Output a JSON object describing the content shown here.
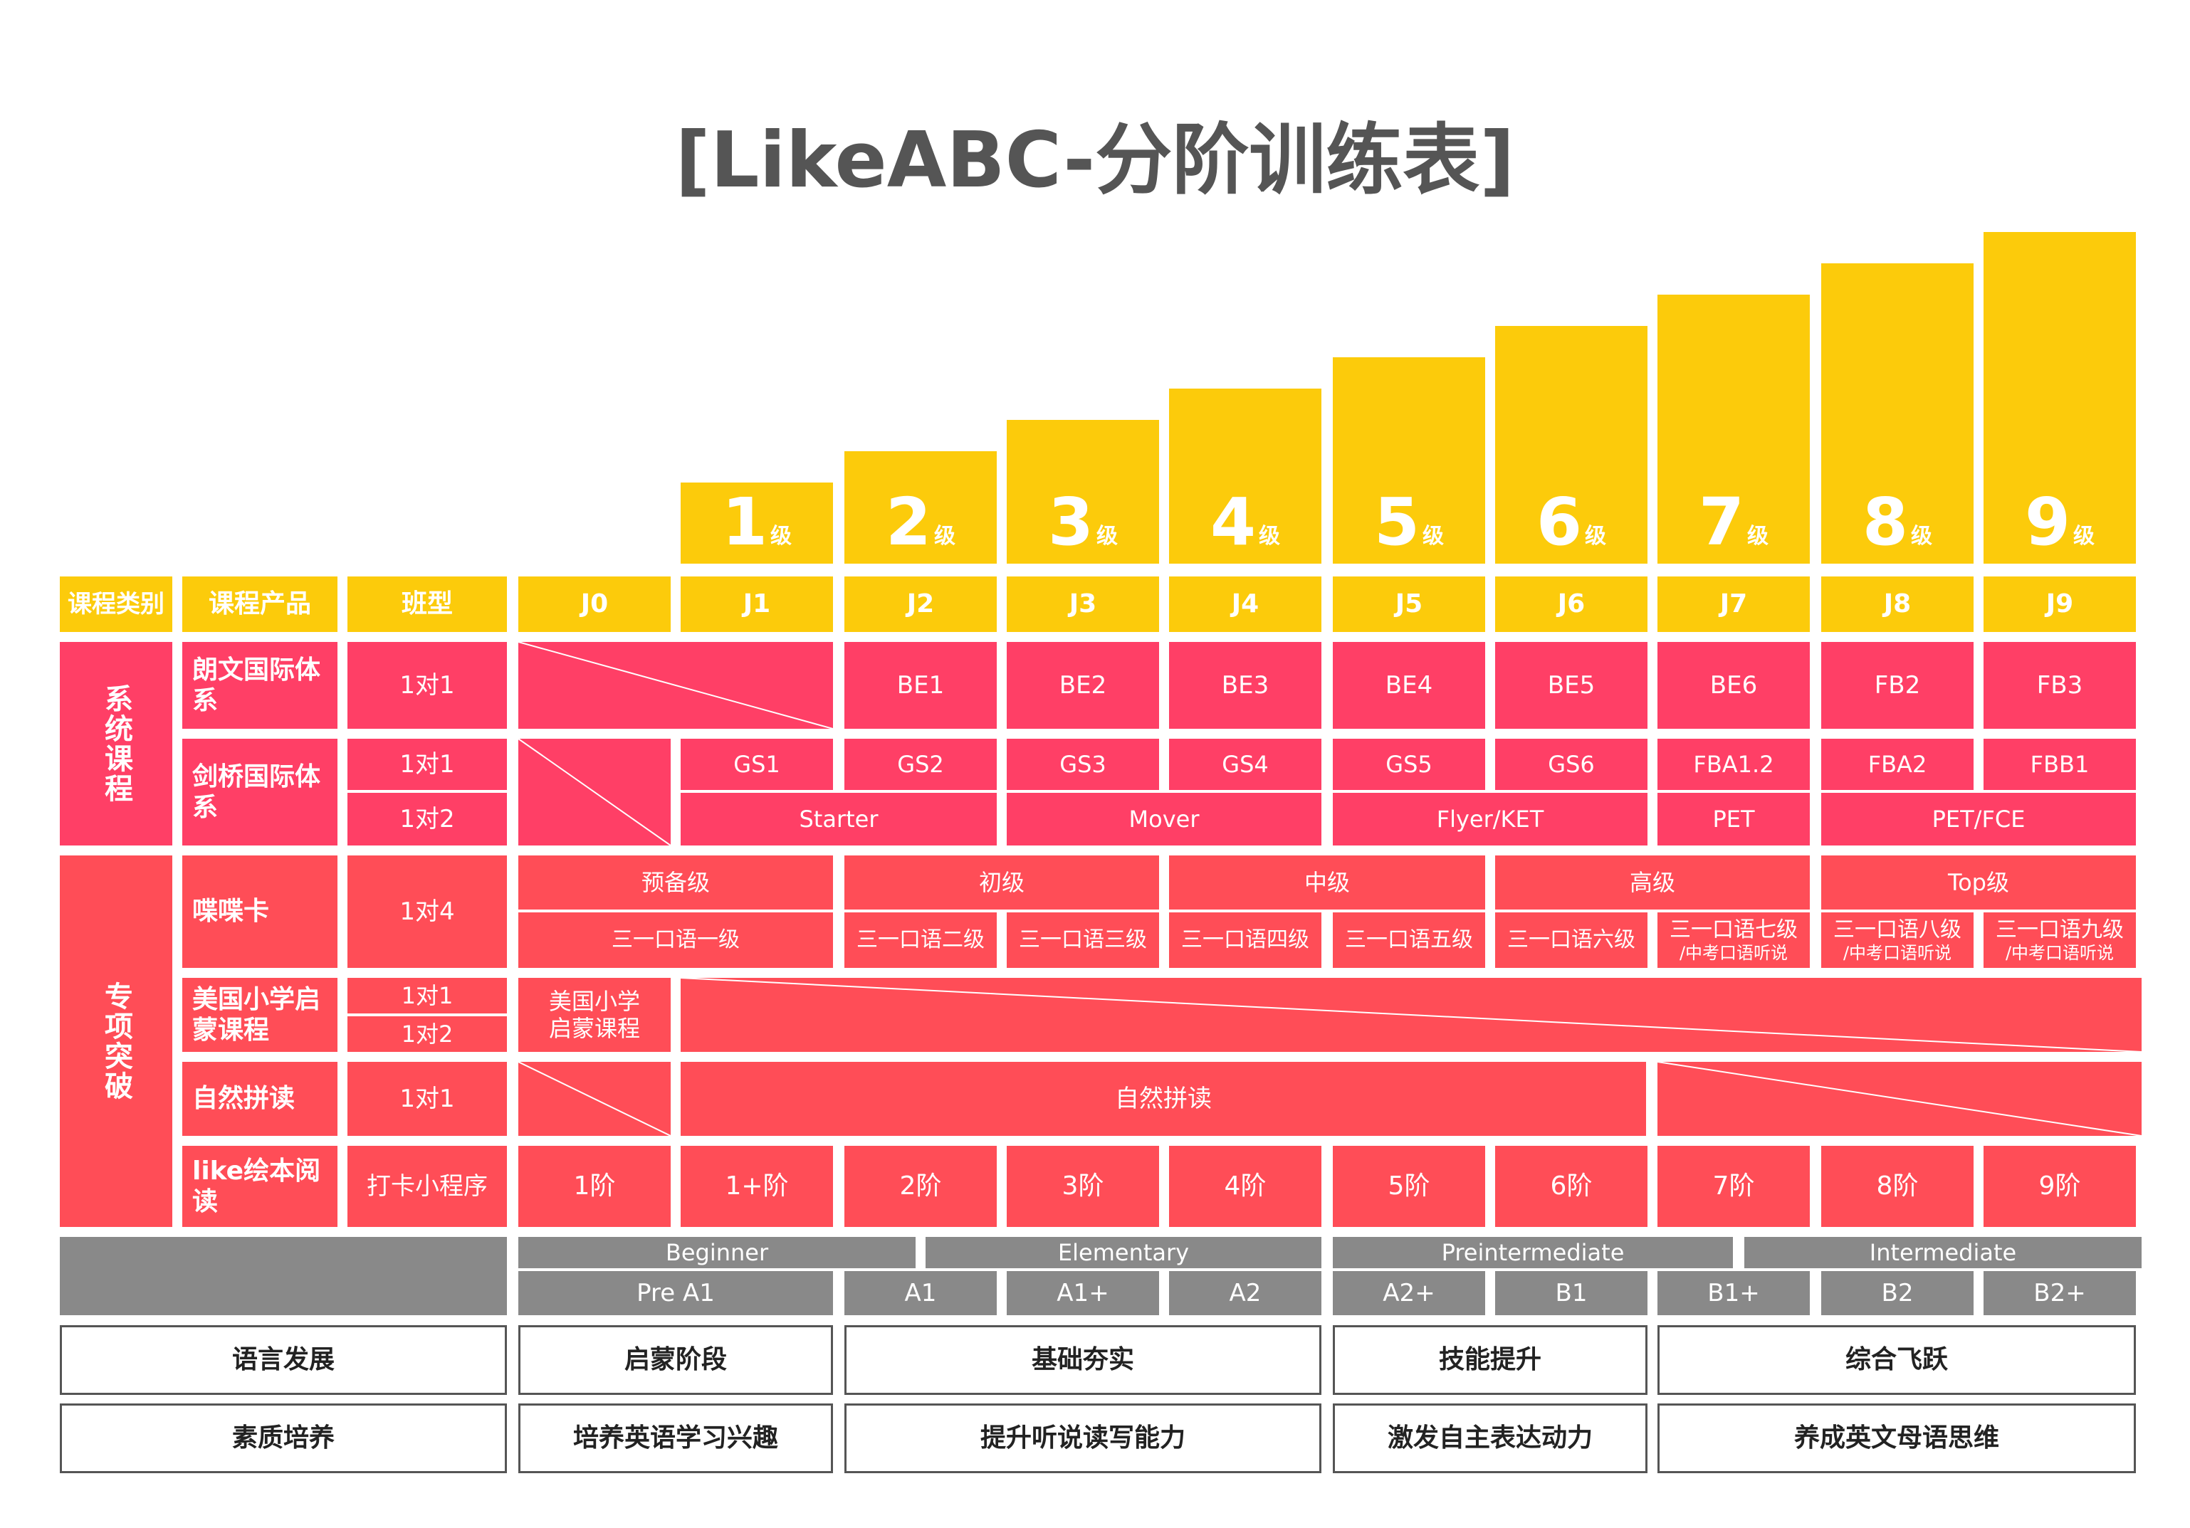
{
  "title": "[LikeABC-分阶训练表]",
  "chart_data": {
    "type": "bar",
    "categories": [
      "1级",
      "2级",
      "3级",
      "4级",
      "5级",
      "6级",
      "7级",
      "8级",
      "9级"
    ],
    "values": [
      1,
      2,
      3,
      4,
      5,
      6,
      7,
      8,
      9
    ],
    "title": "[LikeABC-分阶训练表]"
  },
  "levels": [
    {
      "num": "1",
      "suffix": "级"
    },
    {
      "num": "2",
      "suffix": "级"
    },
    {
      "num": "3",
      "suffix": "级"
    },
    {
      "num": "4",
      "suffix": "级"
    },
    {
      "num": "5",
      "suffix": "级"
    },
    {
      "num": "6",
      "suffix": "级"
    },
    {
      "num": "7",
      "suffix": "级"
    },
    {
      "num": "8",
      "suffix": "级"
    },
    {
      "num": "9",
      "suffix": "级"
    }
  ],
  "header": {
    "category": "课程类别",
    "product": "课程产品",
    "class_type": "班型",
    "stages": [
      "J0",
      "J1",
      "J2",
      "J3",
      "J4",
      "J5",
      "J6",
      "J7",
      "J8",
      "J9"
    ]
  },
  "system": {
    "label": "系统课程",
    "langwen": {
      "name": "朗文国际体系",
      "class": "1对1",
      "cells": [
        "BE1",
        "BE2",
        "BE3",
        "BE4",
        "BE5",
        "BE6",
        "FB2",
        "FB3"
      ]
    },
    "cambridge": {
      "name": "剑桥国际体系",
      "class1": "1对1",
      "class2": "1对2",
      "top": [
        "GS1",
        "GS2",
        "GS3",
        "GS4",
        "GS5",
        "GS6",
        "FBA1.2",
        "FBA2",
        "FBB1"
      ],
      "bottom": [
        "Starter",
        "Mover",
        "Flyer/KET",
        "PET",
        "PET/FCE"
      ]
    }
  },
  "special": {
    "label": "专项突破",
    "diedie": {
      "name": "喋喋卡",
      "class": "1对4",
      "top": [
        "预备级",
        "初级",
        "中级",
        "高级",
        "Top级"
      ],
      "bottom": [
        "三一口语一级",
        "三一口语二级",
        "三一口语三级",
        "三一口语四级",
        "三一口语五级",
        "三一口语六级"
      ],
      "bottom_two_line": [
        {
          "main": "三一口语七级",
          "sub": "/中考口语听说"
        },
        {
          "main": "三一口语八级",
          "sub": "/中考口语听说"
        },
        {
          "main": "三一口语九级",
          "sub": "/中考口语听说"
        }
      ]
    },
    "us": {
      "name": "美国小学启蒙课程",
      "class1": "1对1",
      "class2": "1对2",
      "cell": "美国小学启蒙课程"
    },
    "phonics": {
      "name": "自然拼读",
      "class": "1对1",
      "cell": "自然拼读"
    },
    "picture": {
      "name": "like绘本阅读",
      "class": "打卡小程序",
      "cells": [
        "1阶",
        "1+阶",
        "2阶",
        "3阶",
        "4阶",
        "5阶",
        "6阶",
        "7阶",
        "8阶",
        "9阶"
      ]
    }
  },
  "cefr": {
    "groups": [
      "Beginner",
      "Elementary",
      "Preintermediate",
      "Intermediate"
    ],
    "levels": [
      "Pre A1",
      "A1",
      "A1+",
      "A2",
      "A2+",
      "B1",
      "B1+",
      "B2",
      "B2+"
    ]
  },
  "language_dev": {
    "label": "语言发展",
    "stages": [
      "启蒙阶段",
      "基础夯实",
      "技能提升",
      "综合飞跃"
    ]
  },
  "quality": {
    "label": "素质培养",
    "stages": [
      "培养英语学习兴趣",
      "提升听说读写能力",
      "激发自主表达动力",
      "养成英文母语思维"
    ]
  },
  "colors": {
    "yellow": "#fccb0b",
    "pink": "#ff3f66",
    "salmon": "#ff4d57",
    "gray": "#898989",
    "title": "#555555"
  }
}
